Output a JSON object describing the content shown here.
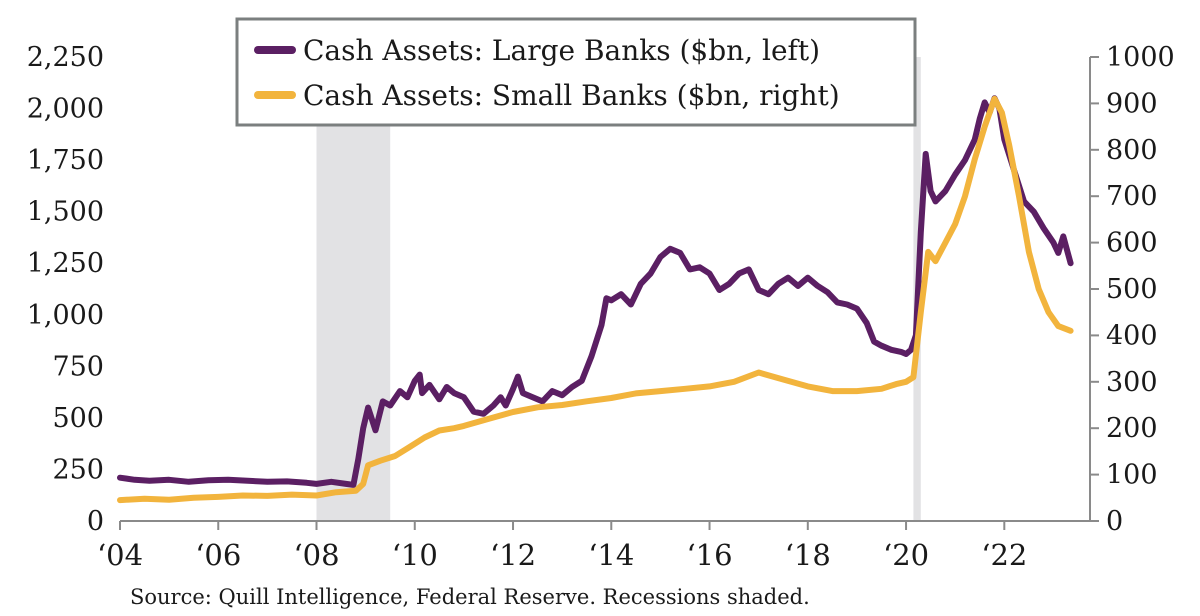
{
  "chart_data": {
    "type": "line",
    "legend_placement": "top-center",
    "grid": false,
    "x_range": [
      2004,
      2023.5
    ],
    "x_ticks": [
      {
        "value": 2004,
        "label": "‘04"
      },
      {
        "value": 2006,
        "label": "‘06"
      },
      {
        "value": 2008,
        "label": "‘08"
      },
      {
        "value": 2010,
        "label": "‘10"
      },
      {
        "value": 2012,
        "label": "‘12"
      },
      {
        "value": 2014,
        "label": "‘14"
      },
      {
        "value": 2016,
        "label": "‘16"
      },
      {
        "value": 2018,
        "label": "‘18"
      },
      {
        "value": 2020,
        "label": "‘20"
      },
      {
        "value": 2022,
        "label": "‘22"
      }
    ],
    "y_left": {
      "range": [
        0,
        2250
      ],
      "ticks": [
        {
          "value": 0,
          "label": "0"
        },
        {
          "value": 250,
          "label": "250"
        },
        {
          "value": 500,
          "label": "500"
        },
        {
          "value": 750,
          "label": "750"
        },
        {
          "value": 1000,
          "label": "1,000"
        },
        {
          "value": 1250,
          "label": "1,250"
        },
        {
          "value": 1500,
          "label": "1,500"
        },
        {
          "value": 1750,
          "label": "1,750"
        },
        {
          "value": 2000,
          "label": "2,000"
        },
        {
          "value": 2250,
          "label": "2,250"
        }
      ]
    },
    "y_right": {
      "range": [
        0,
        1000
      ],
      "ticks": [
        {
          "value": 0,
          "label": "0"
        },
        {
          "value": 100,
          "label": "100"
        },
        {
          "value": 200,
          "label": "200"
        },
        {
          "value": 300,
          "label": "300"
        },
        {
          "value": 400,
          "label": "400"
        },
        {
          "value": 500,
          "label": "500"
        },
        {
          "value": 600,
          "label": "600"
        },
        {
          "value": 700,
          "label": "700"
        },
        {
          "value": 800,
          "label": "800"
        },
        {
          "value": 900,
          "label": "900"
        },
        {
          "value": 1000,
          "label": "1000"
        }
      ]
    },
    "recessions": [
      {
        "start": 2008.0,
        "end": 2009.5
      },
      {
        "start": 2020.15,
        "end": 2020.3
      }
    ],
    "series": [
      {
        "name": "Cash Assets: Large Banks ($bn, left)",
        "axis": "left",
        "color": "#5b1f63",
        "points": [
          [
            2004.0,
            210
          ],
          [
            2004.3,
            200
          ],
          [
            2004.6,
            195
          ],
          [
            2005.0,
            200
          ],
          [
            2005.4,
            190
          ],
          [
            2005.8,
            198
          ],
          [
            2006.2,
            200
          ],
          [
            2006.6,
            195
          ],
          [
            2007.0,
            190
          ],
          [
            2007.4,
            192
          ],
          [
            2007.8,
            185
          ],
          [
            2008.0,
            180
          ],
          [
            2008.3,
            190
          ],
          [
            2008.6,
            180
          ],
          [
            2008.75,
            175
          ],
          [
            2008.85,
            300
          ],
          [
            2008.95,
            450
          ],
          [
            2009.05,
            550
          ],
          [
            2009.2,
            440
          ],
          [
            2009.35,
            580
          ],
          [
            2009.5,
            560
          ],
          [
            2009.7,
            630
          ],
          [
            2009.85,
            600
          ],
          [
            2010.0,
            680
          ],
          [
            2010.1,
            710
          ],
          [
            2010.15,
            620
          ],
          [
            2010.3,
            660
          ],
          [
            2010.5,
            590
          ],
          [
            2010.65,
            650
          ],
          [
            2010.8,
            620
          ],
          [
            2011.0,
            600
          ],
          [
            2011.2,
            530
          ],
          [
            2011.4,
            520
          ],
          [
            2011.6,
            560
          ],
          [
            2011.75,
            600
          ],
          [
            2011.85,
            560
          ],
          [
            2012.0,
            640
          ],
          [
            2012.1,
            700
          ],
          [
            2012.2,
            620
          ],
          [
            2012.4,
            600
          ],
          [
            2012.6,
            580
          ],
          [
            2012.8,
            630
          ],
          [
            2013.0,
            610
          ],
          [
            2013.2,
            650
          ],
          [
            2013.4,
            680
          ],
          [
            2013.6,
            800
          ],
          [
            2013.8,
            950
          ],
          [
            2013.9,
            1080
          ],
          [
            2014.0,
            1070
          ],
          [
            2014.2,
            1100
          ],
          [
            2014.4,
            1050
          ],
          [
            2014.6,
            1150
          ],
          [
            2014.8,
            1200
          ],
          [
            2015.0,
            1280
          ],
          [
            2015.2,
            1320
          ],
          [
            2015.4,
            1300
          ],
          [
            2015.6,
            1220
          ],
          [
            2015.8,
            1230
          ],
          [
            2016.0,
            1200
          ],
          [
            2016.2,
            1120
          ],
          [
            2016.4,
            1150
          ],
          [
            2016.6,
            1200
          ],
          [
            2016.8,
            1220
          ],
          [
            2017.0,
            1120
          ],
          [
            2017.2,
            1100
          ],
          [
            2017.4,
            1150
          ],
          [
            2017.6,
            1180
          ],
          [
            2017.8,
            1140
          ],
          [
            2018.0,
            1180
          ],
          [
            2018.2,
            1140
          ],
          [
            2018.4,
            1110
          ],
          [
            2018.6,
            1060
          ],
          [
            2018.8,
            1050
          ],
          [
            2019.0,
            1030
          ],
          [
            2019.2,
            960
          ],
          [
            2019.35,
            870
          ],
          [
            2019.5,
            850
          ],
          [
            2019.7,
            830
          ],
          [
            2019.9,
            820
          ],
          [
            2020.0,
            810
          ],
          [
            2020.1,
            830
          ],
          [
            2020.2,
            900
          ],
          [
            2020.3,
            1400
          ],
          [
            2020.4,
            1780
          ],
          [
            2020.5,
            1600
          ],
          [
            2020.6,
            1550
          ],
          [
            2020.8,
            1600
          ],
          [
            2021.0,
            1680
          ],
          [
            2021.2,
            1750
          ],
          [
            2021.4,
            1850
          ],
          [
            2021.5,
            1950
          ],
          [
            2021.6,
            2030
          ],
          [
            2021.7,
            1980
          ],
          [
            2021.8,
            2050
          ],
          [
            2021.9,
            2000
          ],
          [
            2022.0,
            1850
          ],
          [
            2022.2,
            1700
          ],
          [
            2022.4,
            1550
          ],
          [
            2022.6,
            1500
          ],
          [
            2022.8,
            1420
          ],
          [
            2023.0,
            1350
          ],
          [
            2023.1,
            1300
          ],
          [
            2023.2,
            1380
          ],
          [
            2023.35,
            1250
          ]
        ]
      },
      {
        "name": "Cash Assets: Small Banks ($bn, right)",
        "axis": "right",
        "color": "#f2b43d",
        "points": [
          [
            2004.0,
            45
          ],
          [
            2004.5,
            48
          ],
          [
            2005.0,
            46
          ],
          [
            2005.5,
            50
          ],
          [
            2006.0,
            52
          ],
          [
            2006.5,
            55
          ],
          [
            2007.0,
            54
          ],
          [
            2007.5,
            57
          ],
          [
            2008.0,
            55
          ],
          [
            2008.4,
            62
          ],
          [
            2008.8,
            65
          ],
          [
            2008.95,
            80
          ],
          [
            2009.05,
            120
          ],
          [
            2009.3,
            130
          ],
          [
            2009.6,
            140
          ],
          [
            2009.9,
            160
          ],
          [
            2010.2,
            180
          ],
          [
            2010.5,
            195
          ],
          [
            2010.8,
            200
          ],
          [
            2011.0,
            205
          ],
          [
            2011.5,
            220
          ],
          [
            2012.0,
            235
          ],
          [
            2012.5,
            245
          ],
          [
            2013.0,
            250
          ],
          [
            2013.5,
            258
          ],
          [
            2014.0,
            265
          ],
          [
            2014.5,
            275
          ],
          [
            2015.0,
            280
          ],
          [
            2015.5,
            285
          ],
          [
            2016.0,
            290
          ],
          [
            2016.5,
            300
          ],
          [
            2017.0,
            320
          ],
          [
            2017.5,
            305
          ],
          [
            2018.0,
            290
          ],
          [
            2018.5,
            280
          ],
          [
            2019.0,
            280
          ],
          [
            2019.5,
            285
          ],
          [
            2019.8,
            295
          ],
          [
            2020.0,
            300
          ],
          [
            2020.15,
            310
          ],
          [
            2020.3,
            450
          ],
          [
            2020.45,
            580
          ],
          [
            2020.6,
            560
          ],
          [
            2020.8,
            600
          ],
          [
            2021.0,
            640
          ],
          [
            2021.2,
            700
          ],
          [
            2021.4,
            780
          ],
          [
            2021.6,
            850
          ],
          [
            2021.8,
            910
          ],
          [
            2021.95,
            880
          ],
          [
            2022.1,
            810
          ],
          [
            2022.3,
            700
          ],
          [
            2022.5,
            580
          ],
          [
            2022.7,
            500
          ],
          [
            2022.9,
            450
          ],
          [
            2023.1,
            420
          ],
          [
            2023.35,
            410
          ]
        ]
      }
    ]
  },
  "legend": [
    {
      "label": "Cash Assets: Large Banks ($bn, left)",
      "color": "#5b1f63"
    },
    {
      "label": "Cash Assets: Small Banks ($bn, right)",
      "color": "#f2b43d"
    }
  ],
  "source": "Source: Quill Intelligence, Federal Reserve. Recessions shaded.",
  "colors": {
    "recession_fill": "#e2e2e4",
    "axis_line": "#8a8a8a",
    "legend_border": "#7b7f7f"
  }
}
